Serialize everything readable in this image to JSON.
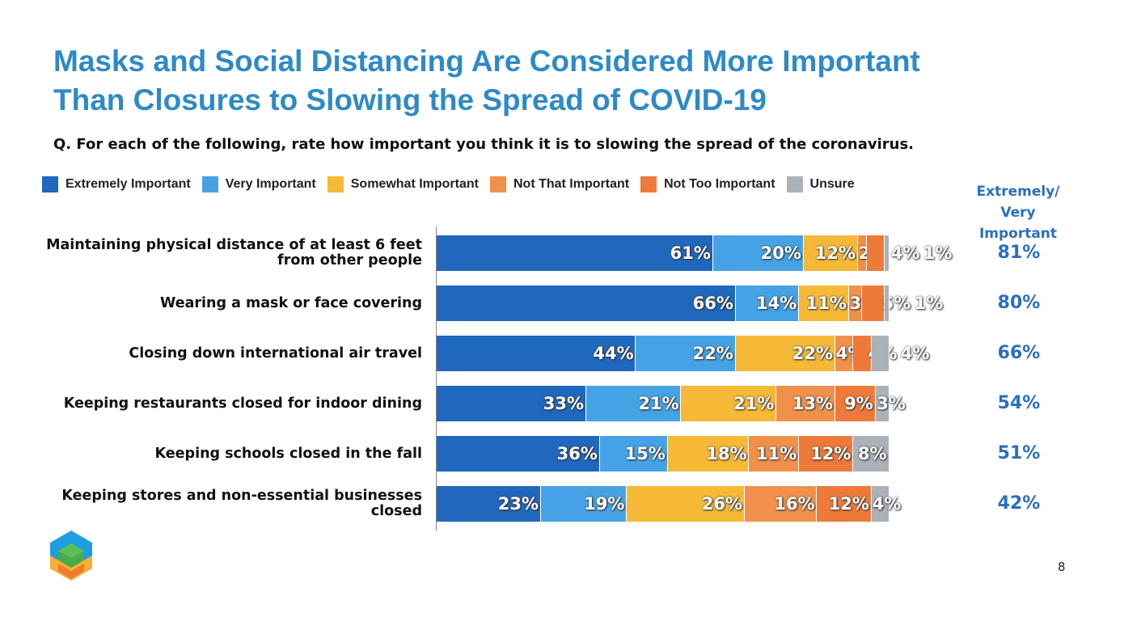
{
  "title_line1": "Masks and Social Distancing Are Considered More Important",
  "title_line2": "Than Closures to Slowing the Spread of COVID-19",
  "question": "Q. For each of the following, rate how important you think it is to slowing the spread of the coronavirus.",
  "page_number": "8",
  "chart_data": {
    "type": "bar",
    "orientation": "horizontal-stacked",
    "title": "Masks and Social Distancing Are Considered More Important Than Closures to Slowing the Spread of COVID-19",
    "xlim": [
      0,
      100
    ],
    "legend_position": "top",
    "summary_header": "Extremely/ Very Important",
    "categories": [
      "Maintaining physical distance of at least 6 feet from other people",
      "Wearing a mask or face covering",
      "Closing down international air travel",
      "Keeping restaurants closed for indoor dining",
      "Keeping schools closed in the fall",
      "Keeping stores and non-essential businesses closed"
    ],
    "series": [
      {
        "name": "Extremely Important",
        "color": "#1f68be",
        "values": [
          61,
          66,
          44,
          33,
          36,
          23
        ]
      },
      {
        "name": "Very Important",
        "color": "#45a3e5",
        "values": [
          20,
          14,
          22,
          21,
          15,
          19
        ]
      },
      {
        "name": "Somewhat Important",
        "color": "#f6b937",
        "values": [
          12,
          11,
          22,
          21,
          18,
          26
        ]
      },
      {
        "name": "Not That Important",
        "color": "#f0904a",
        "values": [
          2,
          3,
          4,
          13,
          11,
          16
        ]
      },
      {
        "name": "Not Too Important",
        "color": "#ee7a3a",
        "values": [
          4,
          5,
          4,
          9,
          12,
          12
        ]
      },
      {
        "name": "Unsure",
        "color": "#abb1b8",
        "values": [
          1,
          1,
          4,
          3,
          8,
          4
        ]
      }
    ],
    "extremely_very": [
      "81%",
      "80%",
      "66%",
      "54%",
      "51%",
      "42%"
    ]
  }
}
